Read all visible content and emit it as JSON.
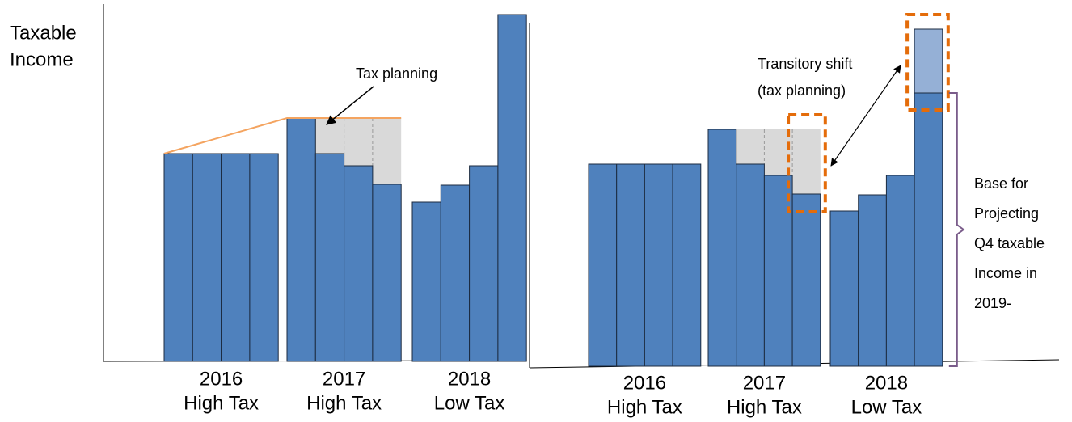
{
  "ylabel": [
    "Taxable",
    "Income"
  ],
  "chart_data": [
    {
      "type": "bar",
      "ylim": [
        0,
        440
      ],
      "planning_level": 301,
      "annotation": "Tax planning",
      "groups": [
        {
          "year": "2016",
          "label": "High Tax",
          "values": [
            257,
            257,
            257,
            257
          ]
        },
        {
          "year": "2017",
          "label": "High Tax",
          "values": [
            301,
            257,
            242,
            219
          ]
        },
        {
          "year": "2018",
          "label": "Low Tax",
          "values": [
            197,
            218,
            242,
            429
          ]
        }
      ]
    },
    {
      "type": "bar",
      "ylim": [
        0,
        440
      ],
      "planning_level": 293,
      "shift": 79,
      "annotation": [
        "Transitory shift",
        "(tax planning)"
      ],
      "brace_label": [
        "Base for",
        "Projecting",
        "Q4 taxable",
        "Income in",
        "2019-"
      ],
      "groups": [
        {
          "year": "2016",
          "label": "High Tax",
          "values": [
            250,
            250,
            250,
            250
          ]
        },
        {
          "year": "2017",
          "label": "High Tax",
          "values": [
            293,
            250,
            236,
            213
          ]
        },
        {
          "year": "2018",
          "label": "Low Tax",
          "values": [
            192,
            212,
            236,
            338
          ]
        }
      ]
    }
  ]
}
